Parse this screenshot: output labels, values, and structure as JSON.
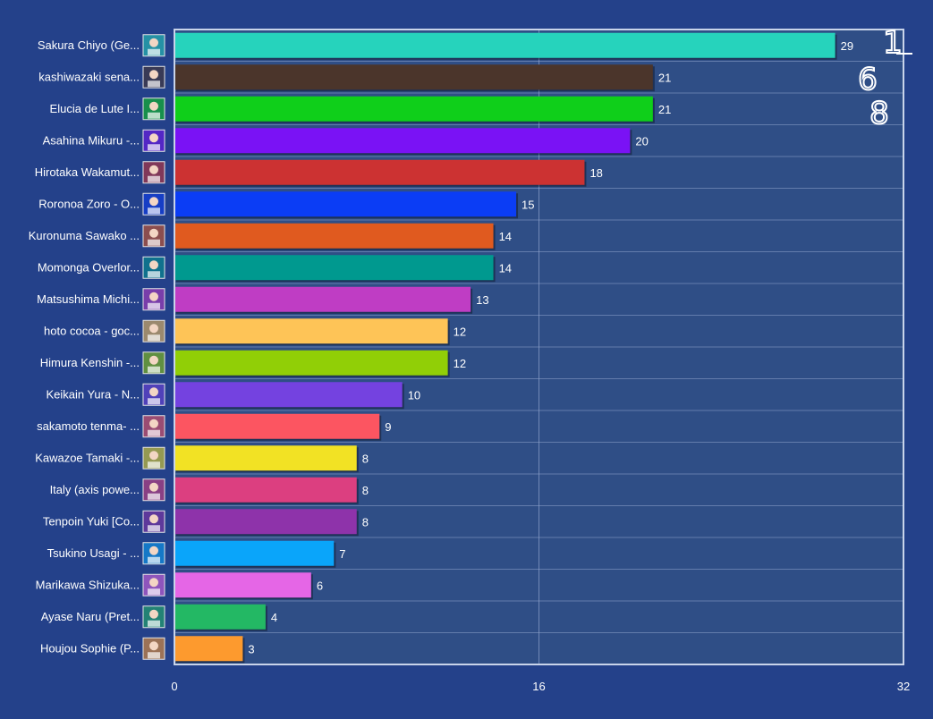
{
  "chart_data": {
    "type": "bar",
    "orientation": "horizontal",
    "title": "",
    "xlabel": "",
    "ylabel": "",
    "xlim": [
      0,
      32
    ],
    "x_ticks": [
      "0",
      "16",
      "32"
    ],
    "grid": true,
    "categories": [
      "Sakura Chiyo (Ge...",
      "kashiwazaki sena...",
      "Elucia de Lute I...",
      "Asahina Mikuru -...",
      "Hirotaka Wakamut...",
      "Roronoa Zoro - O...",
      "Kuronuma Sawako ...",
      "Momonga Overlor...",
      "Matsushima Michi...",
      "hoto cocoa - goc...",
      "Himura Kenshin -...",
      "Keikain Yura - N...",
      "sakamoto tenma- ...",
      "Kawazoe Tamaki -...",
      "Italy (axis powe...",
      "Tenpoin Yuki [Co...",
      "Tsukino Usagi - ...",
      "Marikawa Shizuka...",
      "Ayase Naru (Pret...",
      "Houjou Sophie (P..."
    ],
    "values": [
      29,
      21,
      21,
      20,
      18,
      15,
      14,
      14,
      13,
      12,
      12,
      10,
      9,
      8,
      8,
      8,
      7,
      6,
      4,
      3
    ],
    "colors": [
      "#26d3bc",
      "#4b352b",
      "#0fcf1a",
      "#7a12f5",
      "#cc3232",
      "#0b3df5",
      "#e05a1f",
      "#00998f",
      "#bf3dc4",
      "#fec457",
      "#91cf06",
      "#7442e0",
      "#fc5561",
      "#f2e224",
      "#dc3f80",
      "#8e33aa",
      "#0aa5fa",
      "#e566e6",
      "#23b864",
      "#fd9a2e"
    ],
    "annotations": [
      "1",
      "6",
      "8"
    ]
  }
}
